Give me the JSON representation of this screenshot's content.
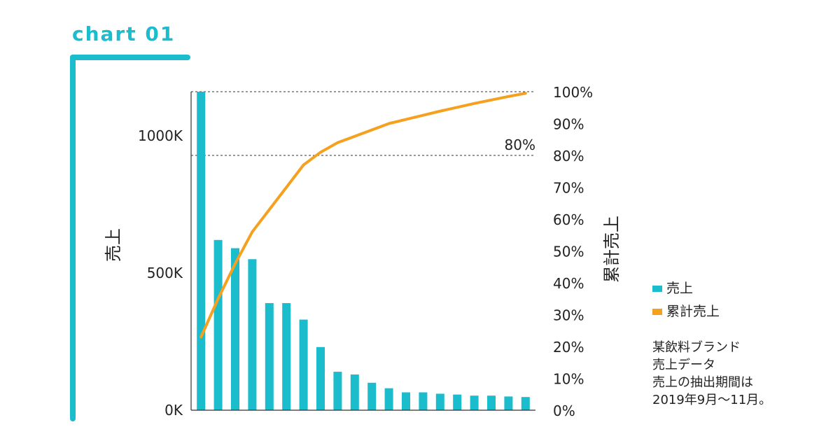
{
  "tag": "chart 01",
  "colors": {
    "accent": "#1bbccc",
    "bar": "#1bbccc",
    "line": "#f5a01f",
    "reference": "#333333"
  },
  "chart_data": {
    "type": "bar",
    "combo": "bar + cumulative line (pareto)",
    "ylabel_left": "売上",
    "ylabel_right": "累計売上",
    "left_axis": {
      "ticks": [
        "0K",
        "500K",
        "1000K"
      ],
      "tick_values": [
        0,
        500000,
        1000000
      ],
      "ylim": [
        0,
        1160000
      ]
    },
    "right_axis": {
      "ticks": [
        "0%",
        "10%",
        "20%",
        "30%",
        "40%",
        "50%",
        "60%",
        "70%",
        "80%",
        "90%",
        "100%"
      ],
      "tick_values": [
        0,
        10,
        20,
        30,
        40,
        50,
        60,
        70,
        80,
        90,
        100
      ],
      "ylim": [
        0,
        100
      ]
    },
    "series": [
      {
        "name": "売上",
        "type": "bar",
        "values": [
          1160000,
          620000,
          590000,
          550000,
          390000,
          390000,
          330000,
          230000,
          140000,
          130000,
          100000,
          80000,
          65000,
          65000,
          60000,
          57000,
          53000,
          53000,
          50000,
          48000
        ]
      },
      {
        "name": "累計売上",
        "type": "line",
        "values": [
          23,
          35,
          46,
          56,
          63,
          70,
          77,
          81,
          84,
          86,
          88,
          90,
          91.3,
          92.6,
          93.9,
          95.1,
          96.3,
          97.4,
          98.5,
          99.5
        ]
      }
    ],
    "reference_lines": [
      {
        "axis": "right",
        "value": 100
      },
      {
        "axis": "right",
        "value": 80,
        "label": "80%"
      }
    ],
    "grid": false,
    "legend": {
      "placement": "right",
      "entries": [
        "売上",
        "累計売上"
      ]
    }
  },
  "note": {
    "lines": [
      "某飲料ブランド",
      "売上データ",
      "売上の抽出期間は",
      "2019年9月〜11月。"
    ]
  }
}
